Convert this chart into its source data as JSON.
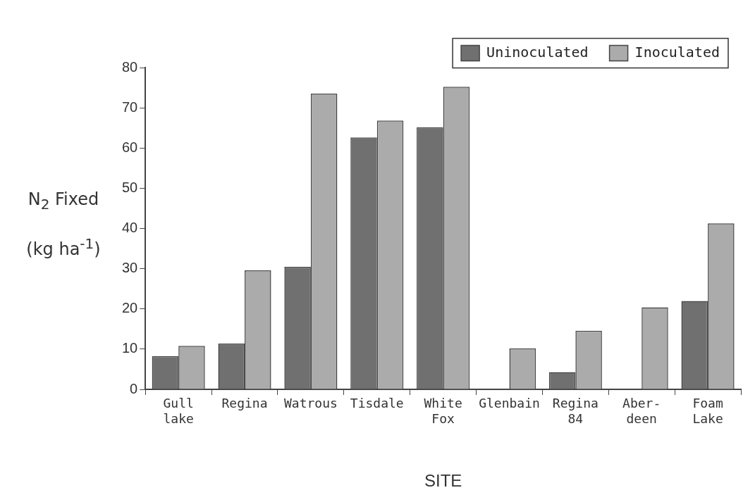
{
  "chart_data": {
    "type": "bar",
    "xlabel": "SITE",
    "ylabel": "N$_{2}$ Fixed\n(kg ha$^{-1}$)",
    "categories": [
      "Gull\nlake",
      "Regina",
      "Watrous",
      "Tisdale",
      "White\nFox",
      "Glenbain",
      "Regina\n84",
      "Aber-\ndeen",
      "Foam\nLake"
    ],
    "series": [
      {
        "name": "Uninoculated",
        "color": "#707070",
        "values": [
          8.3,
          11.4,
          30.5,
          62.7,
          65.2,
          0,
          4.3,
          0,
          22
        ]
      },
      {
        "name": "Inoculated",
        "color": "#ababab",
        "values": [
          10.8,
          29.6,
          73.6,
          66.9,
          75.3,
          10.2,
          14.6,
          20.4,
          41.3
        ]
      }
    ],
    "ylim": [
      0,
      80
    ],
    "yticks": [
      0,
      10,
      20,
      30,
      40,
      50,
      60,
      70,
      80
    ],
    "grid": false,
    "legend": "top right"
  }
}
